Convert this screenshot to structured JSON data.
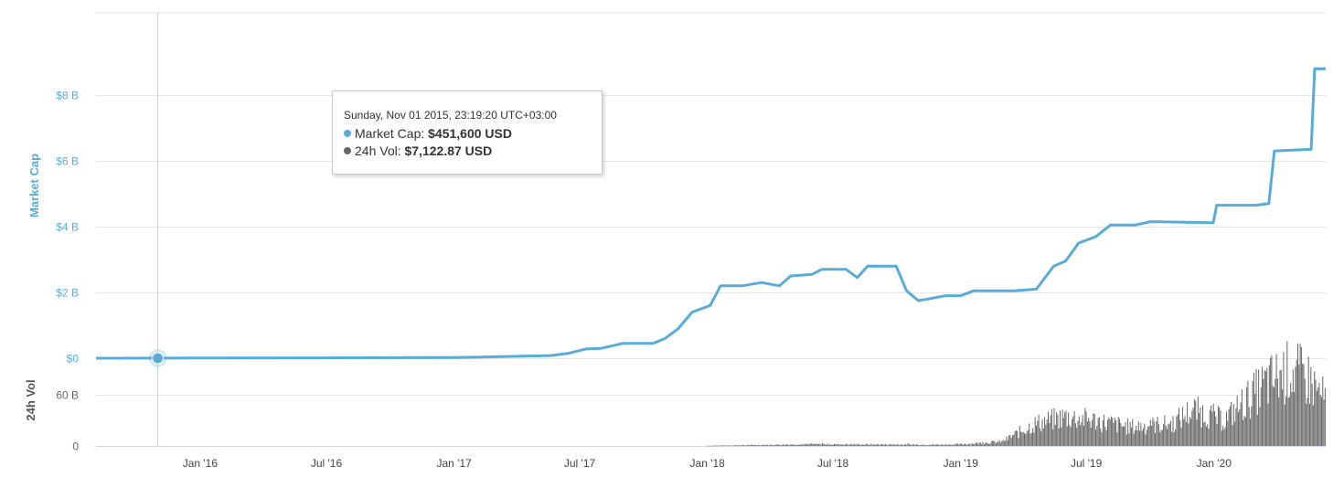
{
  "colors": {
    "market_cap": "#5aacd8",
    "volume": "#666666",
    "grid": "#e6e6e6"
  },
  "chart_data": {
    "type": "line",
    "ylabel": "Market Cap",
    "ylabel_volume": "24h Vol",
    "market_cap_ticks": [
      "$0",
      "$2 B",
      "$4 B",
      "$6 B",
      "$8 B"
    ],
    "volume_ticks": [
      "0",
      "60 B"
    ],
    "x_ticks": [
      "Jan '16",
      "Jul '16",
      "Jan '17",
      "Jul '17",
      "Jan '18",
      "Jul '18",
      "Jan '19",
      "Jul '19",
      "Jan '20"
    ],
    "x_range": [
      "2015-08-04",
      "2020-06-10"
    ],
    "ylim_billions": [
      0,
      10.5
    ],
    "volume_ylim_billions": [
      0,
      102
    ],
    "grid": true,
    "series": [
      {
        "name": "Market Cap",
        "unit": "billion USD",
        "points": [
          [
            "2015-08-04",
            0
          ],
          [
            "2016-01-01",
            0.005
          ],
          [
            "2016-07-01",
            0.01
          ],
          [
            "2017-01-01",
            0.02
          ],
          [
            "2017-05-20",
            0.08
          ],
          [
            "2017-06-15",
            0.15
          ],
          [
            "2017-07-10",
            0.28
          ],
          [
            "2017-08-01",
            0.3
          ],
          [
            "2017-09-01",
            0.45
          ],
          [
            "2017-10-15",
            0.45
          ],
          [
            "2017-11-01",
            0.6
          ],
          [
            "2017-11-20",
            0.9
          ],
          [
            "2017-12-10",
            1.4
          ],
          [
            "2018-01-05",
            1.6
          ],
          [
            "2018-01-20",
            2.2
          ],
          [
            "2018-02-20",
            2.2
          ],
          [
            "2018-03-20",
            2.3
          ],
          [
            "2018-04-15",
            2.2
          ],
          [
            "2018-05-01",
            2.5
          ],
          [
            "2018-06-01",
            2.55
          ],
          [
            "2018-06-15",
            2.7
          ],
          [
            "2018-07-20",
            2.7
          ],
          [
            "2018-08-05",
            2.45
          ],
          [
            "2018-08-20",
            2.8
          ],
          [
            "2018-09-30",
            2.8
          ],
          [
            "2018-10-15",
            2.05
          ],
          [
            "2018-11-01",
            1.75
          ],
          [
            "2018-11-15",
            1.8
          ],
          [
            "2018-12-10",
            1.9
          ],
          [
            "2019-01-01",
            1.9
          ],
          [
            "2019-01-20",
            2.05
          ],
          [
            "2019-03-20",
            2.05
          ],
          [
            "2019-04-20",
            2.1
          ],
          [
            "2019-05-15",
            2.8
          ],
          [
            "2019-06-01",
            2.95
          ],
          [
            "2019-06-20",
            3.5
          ],
          [
            "2019-07-15",
            3.7
          ],
          [
            "2019-08-05",
            4.05
          ],
          [
            "2019-09-10",
            4.05
          ],
          [
            "2019-10-01",
            4.15
          ],
          [
            "2019-12-31",
            4.12
          ],
          [
            "2020-01-05",
            4.65
          ],
          [
            "2020-03-01",
            4.65
          ],
          [
            "2020-03-20",
            4.7
          ],
          [
            "2020-03-28",
            6.3
          ],
          [
            "2020-05-20",
            6.35
          ],
          [
            "2020-05-25",
            8.8
          ],
          [
            "2020-06-10",
            8.8
          ]
        ]
      },
      {
        "name": "24h Vol",
        "unit": "billion USD",
        "points": [
          [
            "2015-08-04",
            0
          ],
          [
            "2017-12-31",
            0.3
          ],
          [
            "2018-06-01",
            2
          ],
          [
            "2018-12-01",
            1.5
          ],
          [
            "2019-01-01",
            2
          ],
          [
            "2019-03-01",
            5
          ],
          [
            "2019-04-15",
            25
          ],
          [
            "2019-06-01",
            34
          ],
          [
            "2019-07-10",
            30
          ],
          [
            "2019-09-01",
            22
          ],
          [
            "2019-11-01",
            26
          ],
          [
            "2019-12-01",
            42
          ],
          [
            "2020-01-15",
            30
          ],
          [
            "2020-02-15",
            52
          ],
          [
            "2020-03-15",
            72
          ],
          [
            "2020-04-20",
            88
          ],
          [
            "2020-05-15",
            78
          ],
          [
            "2020-06-10",
            52
          ]
        ]
      }
    ]
  },
  "tooltip": {
    "date": "Sunday, Nov 01 2015, 23:19:20 UTC+03:00",
    "market_cap_label": "Market Cap:",
    "market_cap_value": "$451,600 USD",
    "volume_label": "24h Vol:",
    "volume_value": "$7,122.87 USD",
    "hover_date": "2015-11-01"
  }
}
